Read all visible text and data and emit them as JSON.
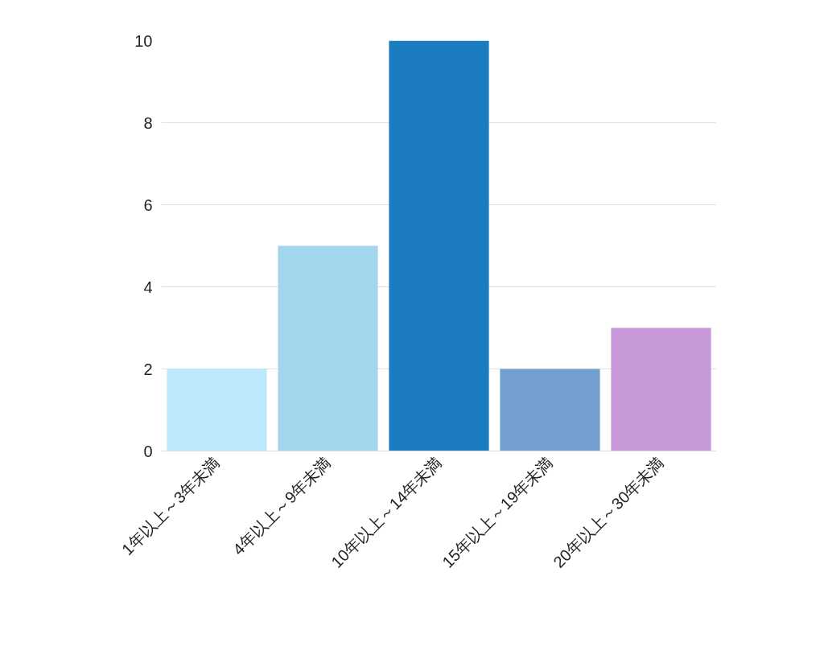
{
  "chart_data": {
    "type": "bar",
    "categories": [
      "1年以上～3年未満",
      "4年以上～9年未満",
      "10年以上～14年未満",
      "15年以上～19年未満",
      "20年以上～30年未満"
    ],
    "values": [
      2,
      5,
      10,
      2,
      3
    ],
    "colors": [
      "#bde8fc",
      "#a3d5ed",
      "#1c7cc0",
      "#729fcf",
      "#c798d8"
    ],
    "ylim": [
      0,
      10
    ],
    "yticks": [
      0,
      2,
      4,
      6,
      8,
      10
    ],
    "grid": "y"
  }
}
